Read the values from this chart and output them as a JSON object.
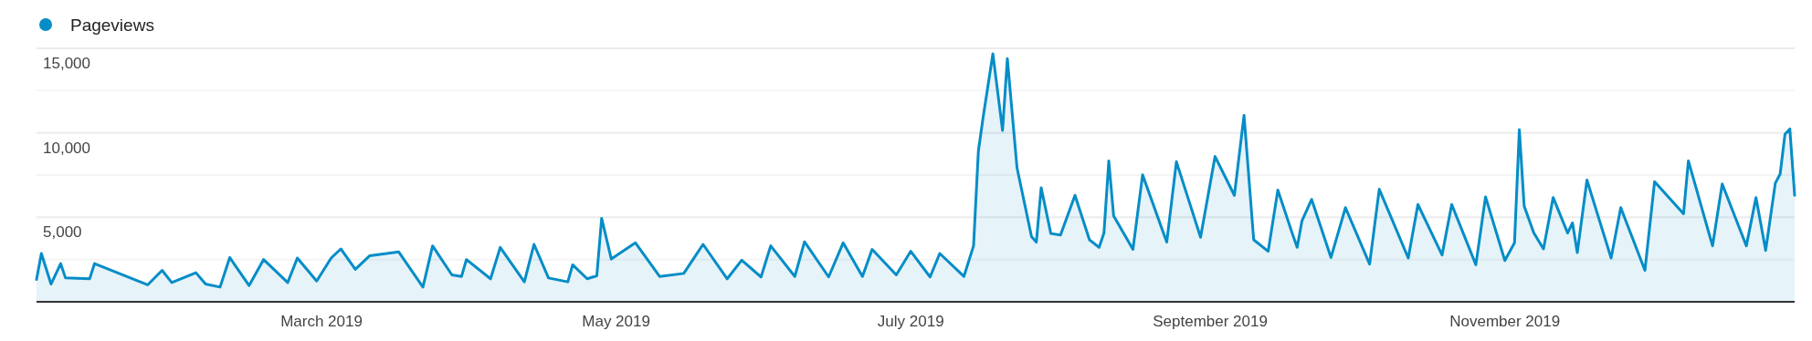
{
  "chart_data": {
    "type": "area",
    "x": [
      "2019-01-01",
      "2019-01-02",
      "2019-01-04",
      "2019-01-06",
      "2019-01-07",
      "2019-01-12",
      "2019-01-13",
      "2019-01-24",
      "2019-01-27",
      "2019-01-29",
      "2019-02-03",
      "2019-02-05",
      "2019-02-08",
      "2019-02-10",
      "2019-02-14",
      "2019-02-17",
      "2019-02-22",
      "2019-02-24",
      "2019-02-28",
      "2019-03-03",
      "2019-03-05",
      "2019-03-08",
      "2019-03-11",
      "2019-03-17",
      "2019-03-22",
      "2019-03-24",
      "2019-03-28",
      "2019-03-30",
      "2019-03-31",
      "2019-04-05",
      "2019-04-07",
      "2019-04-12",
      "2019-04-14",
      "2019-04-17",
      "2019-04-21",
      "2019-04-22",
      "2019-04-25",
      "2019-04-27",
      "2019-04-28",
      "2019-04-30",
      "2019-05-05",
      "2019-05-10",
      "2019-05-15",
      "2019-05-19",
      "2019-05-24",
      "2019-05-27",
      "2019-05-31",
      "2019-06-02",
      "2019-06-07",
      "2019-06-09",
      "2019-06-14",
      "2019-06-17",
      "2019-06-21",
      "2019-06-23",
      "2019-06-28",
      "2019-07-01",
      "2019-07-05",
      "2019-07-07",
      "2019-07-12",
      "2019-07-14",
      "2019-07-15",
      "2019-07-16",
      "2019-07-18",
      "2019-07-20",
      "2019-07-21",
      "2019-07-23",
      "2019-07-26",
      "2019-07-27",
      "2019-07-28",
      "2019-07-30",
      "2019-08-01",
      "2019-08-04",
      "2019-08-07",
      "2019-08-09",
      "2019-08-10",
      "2019-08-11",
      "2019-08-12",
      "2019-08-16",
      "2019-08-18",
      "2019-08-23",
      "2019-08-25",
      "2019-08-30",
      "2019-09-02",
      "2019-09-06",
      "2019-09-08",
      "2019-09-10",
      "2019-09-13",
      "2019-09-15",
      "2019-09-18",
      "2019-09-19",
      "2019-09-20",
      "2019-09-22",
      "2019-09-26",
      "2019-09-29",
      "2019-10-04",
      "2019-10-06",
      "2019-10-12",
      "2019-10-14",
      "2019-10-19",
      "2019-10-21",
      "2019-10-26",
      "2019-10-28",
      "2019-11-01",
      "2019-11-03",
      "2019-11-04",
      "2019-11-05",
      "2019-11-07",
      "2019-11-09",
      "2019-11-11",
      "2019-11-14",
      "2019-11-15",
      "2019-11-16",
      "2019-11-18",
      "2019-11-23",
      "2019-11-25",
      "2019-11-30",
      "2019-12-02",
      "2019-12-08",
      "2019-12-09",
      "2019-12-14",
      "2019-12-16",
      "2019-12-21",
      "2019-12-23",
      "2019-12-25",
      "2019-12-27",
      "2019-12-28",
      "2019-12-29",
      "2019-12-30",
      "2019-12-31"
    ],
    "series": [
      {
        "name": "Pageviews",
        "color": "#058dc7",
        "values": [
          1320,
          2860,
          1050,
          2260,
          1410,
          1360,
          2260,
          1000,
          1860,
          1140,
          1720,
          1050,
          870,
          2620,
          960,
          2500,
          1140,
          2590,
          1230,
          2590,
          3130,
          1920,
          2730,
          2950,
          870,
          3310,
          1590,
          1500,
          2500,
          1360,
          3220,
          1180,
          3400,
          1410,
          1180,
          2190,
          1360,
          1540,
          4940,
          2530,
          3490,
          1500,
          1680,
          3400,
          1360,
          2460,
          1470,
          3310,
          1500,
          3550,
          1470,
          3490,
          1500,
          3100,
          1590,
          2990,
          1470,
          2860,
          1500,
          3310,
          8920,
          10950,
          14680,
          10140,
          14390,
          7930,
          3860,
          3530,
          6750,
          4040,
          3950,
          6300,
          3670,
          3220,
          4070,
          8340,
          5090,
          3100,
          7510,
          3530,
          8290,
          3820,
          8600,
          6300,
          11040,
          3670,
          2990,
          6610,
          4040,
          3220,
          4800,
          6060,
          2620,
          5570,
          2230,
          6660,
          2590,
          5760,
          2770,
          5760,
          2190,
          6210,
          2440,
          3490,
          10190,
          5670,
          4070,
          3130,
          6170,
          4070,
          4670,
          2910,
          7200,
          2590,
          5570,
          1860,
          7110,
          5210,
          8340,
          3310,
          6970,
          3310,
          6170,
          3040,
          7020,
          7570,
          9920,
          10230,
          6300
        ]
      }
    ],
    "xlim": [
      "2019-01-01",
      "2019-12-31"
    ],
    "xticks": [
      {
        "value": "2019-03-01",
        "label": "March 2019"
      },
      {
        "value": "2019-05-01",
        "label": "May 2019"
      },
      {
        "value": "2019-07-01",
        "label": "July 2019"
      },
      {
        "value": "2019-09-01",
        "label": "September 2019"
      },
      {
        "value": "2019-11-01",
        "label": "November 2019"
      }
    ],
    "ylim": [
      0,
      15000
    ],
    "yticks": [
      {
        "value": 0,
        "label": null
      },
      {
        "value": 2500,
        "label": null
      },
      {
        "value": 5000,
        "label": "5,000"
      },
      {
        "value": 7500,
        "label": null
      },
      {
        "value": 10000,
        "label": "10,000"
      },
      {
        "value": 12500,
        "label": null
      },
      {
        "value": 15000,
        "label": "15,000"
      }
    ],
    "grid": "y",
    "legend": "top left"
  }
}
